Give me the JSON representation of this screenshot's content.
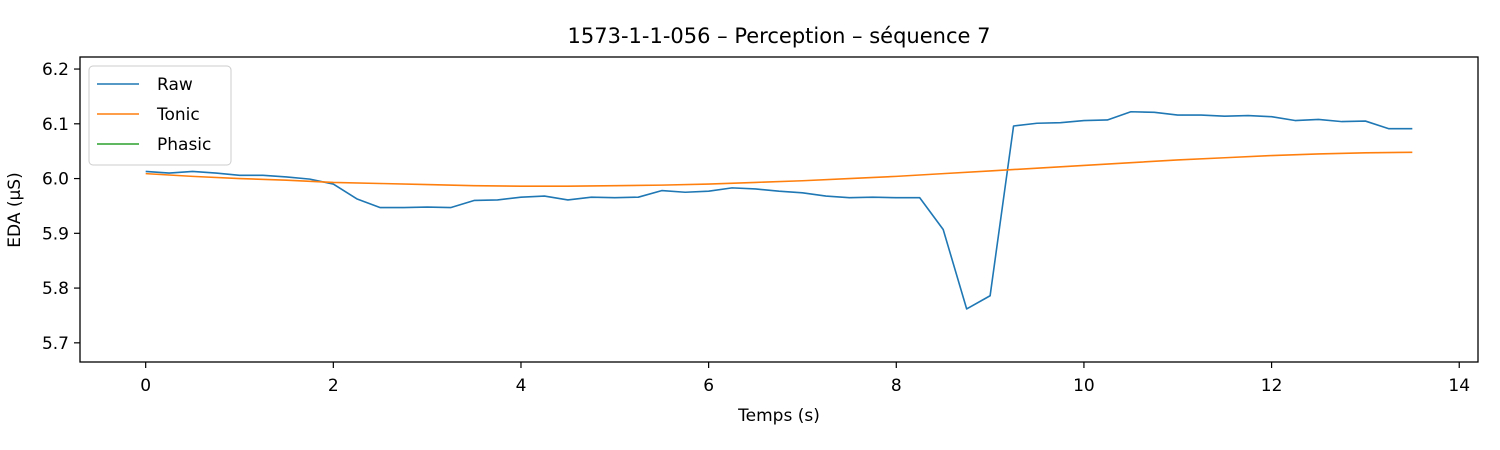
{
  "chart_data": {
    "type": "line",
    "title": "1573-1-1-056 – Perception – séquence 7",
    "xlabel": "Temps (s)",
    "ylabel": "EDA (µS)",
    "xlim": [
      -0.7,
      14.2
    ],
    "ylim": [
      5.665,
      6.222
    ],
    "xticks": [
      0,
      2,
      4,
      6,
      8,
      10,
      12,
      14
    ],
    "yticks": [
      5.7,
      5.8,
      5.9,
      6.0,
      6.1,
      6.2
    ],
    "grid": false,
    "legend_position": "top-left",
    "series": [
      {
        "name": "Raw",
        "color": "#1f77b4",
        "x": [
          0,
          0.25,
          0.5,
          0.75,
          1.0,
          1.25,
          1.5,
          1.75,
          2.0,
          2.25,
          2.5,
          2.75,
          3.0,
          3.25,
          3.5,
          3.75,
          4.0,
          4.25,
          4.5,
          4.75,
          5.0,
          5.25,
          5.5,
          5.75,
          6.0,
          6.25,
          6.5,
          6.75,
          7.0,
          7.25,
          7.5,
          7.75,
          8.0,
          8.25,
          8.5,
          8.75,
          9.0,
          9.25,
          9.5,
          9.75,
          10.0,
          10.25,
          10.5,
          10.75,
          11.0,
          11.25,
          11.5,
          11.75,
          12.0,
          12.25,
          12.5,
          12.75,
          13.0,
          13.25,
          13.5
        ],
        "y": [
          6.013,
          6.01,
          6.013,
          6.01,
          6.006,
          6.006,
          6.003,
          5.999,
          5.99,
          5.963,
          5.947,
          5.947,
          5.948,
          5.947,
          5.96,
          5.961,
          5.966,
          5.968,
          5.961,
          5.966,
          5.965,
          5.966,
          5.978,
          5.975,
          5.977,
          5.983,
          5.981,
          5.977,
          5.974,
          5.968,
          5.965,
          5.966,
          5.965,
          5.965,
          5.907,
          5.762,
          5.786,
          6.096,
          6.101,
          6.102,
          6.106,
          6.107,
          6.122,
          6.121,
          6.116,
          6.116,
          6.114,
          6.115,
          6.113,
          6.106,
          6.108,
          6.104,
          6.105,
          6.091,
          6.091
        ]
      },
      {
        "name": "Tonic",
        "color": "#ff7f0e",
        "x": [
          0,
          0.5,
          1.0,
          1.5,
          2.0,
          2.5,
          3.0,
          3.5,
          4.0,
          4.5,
          5.0,
          5.5,
          6.0,
          6.5,
          7.0,
          7.5,
          8.0,
          8.5,
          9.0,
          9.5,
          10.0,
          10.5,
          11.0,
          11.5,
          12.0,
          12.5,
          13.0,
          13.5
        ],
        "y": [
          6.009,
          6.004,
          6.0,
          5.997,
          5.993,
          5.991,
          5.989,
          5.987,
          5.986,
          5.986,
          5.987,
          5.988,
          5.99,
          5.993,
          5.996,
          6.0,
          6.004,
          6.009,
          6.014,
          6.019,
          6.024,
          6.029,
          6.034,
          6.038,
          6.042,
          6.045,
          6.047,
          6.048
        ]
      },
      {
        "name": "Phasic",
        "color": "#2ca02c",
        "x": [],
        "y": []
      }
    ]
  }
}
